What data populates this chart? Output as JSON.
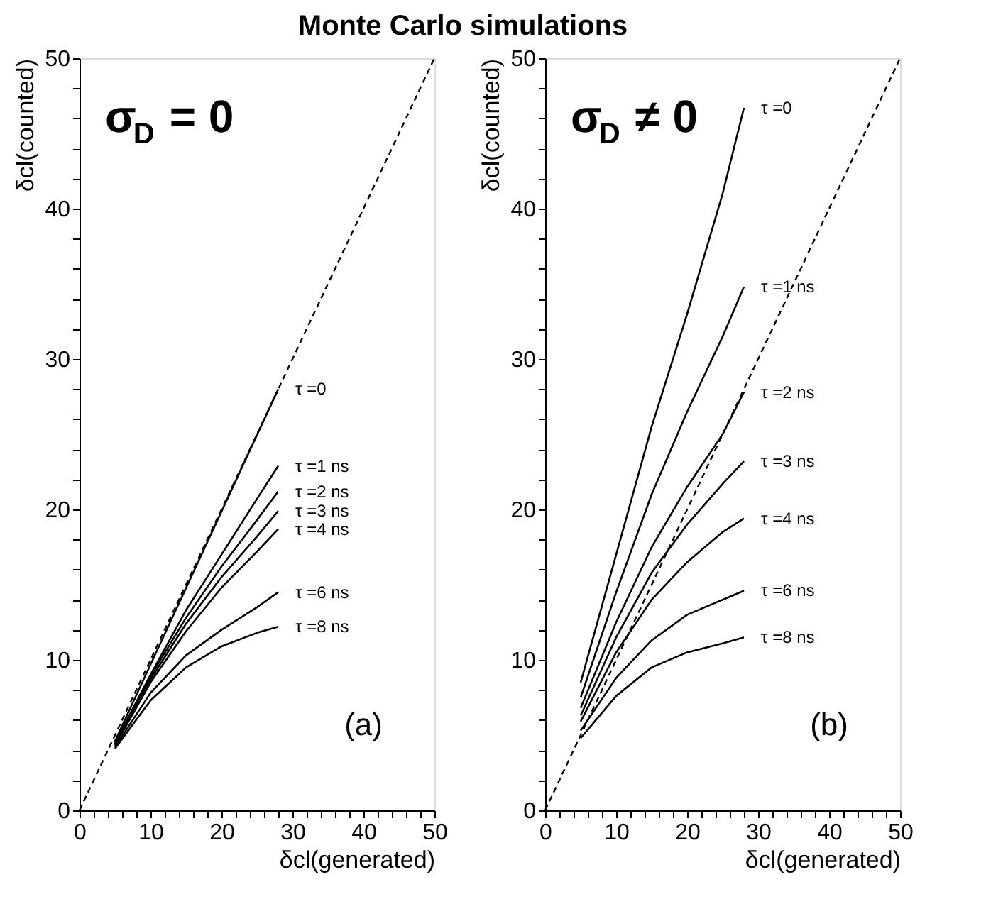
{
  "chart_data": [
    {
      "type": "line",
      "title": "Monte Carlo simulations",
      "xlabel": "δcl(generated)",
      "ylabel": "δcl(counted)",
      "xlim": [
        0,
        50
      ],
      "ylim": [
        0,
        50
      ],
      "xticks": [
        0,
        {
          "value": 2,
          "label": null
        },
        {
          "value": 4,
          "label": null
        },
        {
          "value": 6,
          "label": null
        },
        {
          "value": 8,
          "label": null
        },
        10,
        {
          "value": 12,
          "label": null
        },
        {
          "value": 14,
          "label": null
        },
        {
          "value": 16,
          "label": null
        },
        {
          "value": 18,
          "label": null
        },
        20,
        {
          "value": 22,
          "label": null
        },
        {
          "value": 24,
          "label": null
        },
        {
          "value": 26,
          "label": null
        },
        {
          "value": 28,
          "label": null
        },
        30,
        {
          "value": 32,
          "label": null
        },
        {
          "value": 34,
          "label": null
        },
        {
          "value": 36,
          "label": null
        },
        {
          "value": 38,
          "label": null
        },
        40,
        {
          "value": 42,
          "label": null
        },
        {
          "value": 44,
          "label": null
        },
        {
          "value": 46,
          "label": null
        },
        {
          "value": 48,
          "label": null
        },
        50
      ],
      "yticks": [
        0,
        {
          "value": 2,
          "label": null
        },
        {
          "value": 4,
          "label": null
        },
        {
          "value": 6,
          "label": null
        },
        {
          "value": 8,
          "label": null
        },
        10,
        {
          "value": 12,
          "label": null
        },
        {
          "value": 14,
          "label": null
        },
        {
          "value": 16,
          "label": null
        },
        {
          "value": 18,
          "label": null
        },
        20,
        {
          "value": 22,
          "label": null
        },
        {
          "value": 24,
          "label": null
        },
        {
          "value": 26,
          "label": null
        },
        {
          "value": 28,
          "label": null
        },
        30,
        {
          "value": 32,
          "label": null
        },
        {
          "value": 34,
          "label": null
        },
        {
          "value": 36,
          "label": null
        },
        {
          "value": 38,
          "label": null
        },
        40,
        {
          "value": 42,
          "label": null
        },
        {
          "value": 44,
          "label": null
        },
        {
          "value": 46,
          "label": null
        },
        {
          "value": 48,
          "label": null
        },
        50
      ],
      "grid": false,
      "legend": false,
      "annotations": [
        "σ$_{D}$ = 0",
        "(a)"
      ],
      "series": [
        {
          "color": "#000000",
          "line_style": "dashed",
          "x": [
            0,
            50
          ],
          "values": [
            0,
            50
          ]
        },
        {
          "name": "τ =0",
          "color": "#000000",
          "line_style": "solid",
          "x": [
            5,
            28
          ],
          "values": [
            4.6,
            28
          ]
        },
        {
          "name": "τ =1 ns",
          "color": "#000000",
          "line_style": "solid",
          "x": [
            5,
            10,
            15,
            20,
            25,
            28
          ],
          "values": [
            4.5,
            9,
            13.3,
            17,
            20.7,
            22.9
          ]
        },
        {
          "name": "τ =2 ns",
          "color": "#000000",
          "line_style": "solid",
          "x": [
            5,
            10,
            15,
            20,
            25,
            28
          ],
          "values": [
            4.4,
            8.9,
            12.8,
            16.2,
            19.3,
            21.2
          ]
        },
        {
          "name": "τ =3 ns",
          "color": "#000000",
          "line_style": "solid",
          "x": [
            5,
            10,
            15,
            20,
            25,
            28
          ],
          "values": [
            4.4,
            8.7,
            12.4,
            15.5,
            18.2,
            19.9
          ]
        },
        {
          "name": "τ =4 ns",
          "color": "#000000",
          "line_style": "solid",
          "x": [
            5,
            10,
            15,
            20,
            25,
            28
          ],
          "values": [
            4.3,
            8.5,
            11.9,
            14.8,
            17.2,
            18.7
          ]
        },
        {
          "name": "τ =6 ns",
          "color": "#000000",
          "line_style": "solid",
          "x": [
            5,
            10,
            15,
            20,
            25,
            28
          ],
          "values": [
            4.2,
            7.8,
            10.3,
            12,
            13.5,
            14.5
          ]
        },
        {
          "name": "τ =8 ns",
          "color": "#000000",
          "line_style": "solid",
          "x": [
            5,
            10,
            15,
            20,
            25,
            28
          ],
          "values": [
            4.1,
            7.3,
            9.5,
            10.9,
            11.8,
            12.2
          ]
        }
      ]
    },
    {
      "type": "line",
      "xlabel": "δcl(generated)",
      "ylabel": "δcl(counted)",
      "xlim": [
        0,
        50
      ],
      "ylim": [
        0,
        50
      ],
      "xticks": [
        0,
        {
          "value": 2,
          "label": null
        },
        {
          "value": 4,
          "label": null
        },
        {
          "value": 6,
          "label": null
        },
        {
          "value": 8,
          "label": null
        },
        10,
        {
          "value": 12,
          "label": null
        },
        {
          "value": 14,
          "label": null
        },
        {
          "value": 16,
          "label": null
        },
        {
          "value": 18,
          "label": null
        },
        20,
        {
          "value": 22,
          "label": null
        },
        {
          "value": 24,
          "label": null
        },
        {
          "value": 26,
          "label": null
        },
        {
          "value": 28,
          "label": null
        },
        30,
        {
          "value": 32,
          "label": null
        },
        {
          "value": 34,
          "label": null
        },
        {
          "value": 36,
          "label": null
        },
        {
          "value": 38,
          "label": null
        },
        40,
        {
          "value": 42,
          "label": null
        },
        {
          "value": 44,
          "label": null
        },
        {
          "value": 46,
          "label": null
        },
        {
          "value": 48,
          "label": null
        },
        50
      ],
      "yticks": [
        0,
        {
          "value": 2,
          "label": null
        },
        {
          "value": 4,
          "label": null
        },
        {
          "value": 6,
          "label": null
        },
        {
          "value": 8,
          "label": null
        },
        10,
        {
          "value": 12,
          "label": null
        },
        {
          "value": 14,
          "label": null
        },
        {
          "value": 16,
          "label": null
        },
        {
          "value": 18,
          "label": null
        },
        20,
        {
          "value": 22,
          "label": null
        },
        {
          "value": 24,
          "label": null
        },
        {
          "value": 26,
          "label": null
        },
        {
          "value": 28,
          "label": null
        },
        30,
        {
          "value": 32,
          "label": null
        },
        {
          "value": 34,
          "label": null
        },
        {
          "value": 36,
          "label": null
        },
        {
          "value": 38,
          "label": null
        },
        40,
        {
          "value": 42,
          "label": null
        },
        {
          "value": 44,
          "label": null
        },
        {
          "value": 46,
          "label": null
        },
        {
          "value": 48,
          "label": null
        },
        50
      ],
      "grid": false,
      "legend": false,
      "annotations": [
        "σ$_{D}$ ≠ 0",
        "(b)"
      ],
      "series": [
        {
          "color": "#000000",
          "line_style": "dashed",
          "x": [
            0,
            50
          ],
          "values": [
            0,
            50
          ]
        },
        {
          "name": "τ =0",
          "color": "#000000",
          "line_style": "solid",
          "x": [
            5,
            10,
            15,
            20,
            25,
            28
          ],
          "values": [
            8.5,
            17,
            25.5,
            33,
            41,
            46.7
          ]
        },
        {
          "name": "τ =1 ns",
          "color": "#000000",
          "line_style": "solid",
          "x": [
            5,
            10,
            15,
            20,
            25,
            28
          ],
          "values": [
            7.5,
            14.5,
            21,
            26.5,
            31.5,
            34.8
          ]
        },
        {
          "name": "τ =2 ns",
          "color": "#000000",
          "line_style": "solid",
          "x": [
            5,
            10,
            15,
            20,
            25,
            28
          ],
          "values": [
            6.8,
            12.5,
            17.5,
            21.5,
            25,
            27.8
          ]
        },
        {
          "name": "τ =3 ns",
          "color": "#000000",
          "line_style": "solid",
          "x": [
            5,
            10,
            15,
            20,
            25,
            28
          ],
          "values": [
            6.3,
            11.5,
            15.8,
            19,
            21.7,
            23.2
          ]
        },
        {
          "name": "τ =4 ns",
          "color": "#000000",
          "line_style": "solid",
          "x": [
            5,
            10,
            15,
            20,
            25,
            28
          ],
          "values": [
            5.9,
            10.5,
            14,
            16.5,
            18.5,
            19.4
          ]
        },
        {
          "name": "τ =6 ns",
          "color": "#000000",
          "line_style": "solid",
          "x": [
            5,
            10,
            15,
            20,
            25,
            28
          ],
          "values": [
            5.3,
            8.8,
            11.3,
            13,
            14,
            14.6
          ]
        },
        {
          "name": "τ =8 ns",
          "color": "#000000",
          "line_style": "solid",
          "x": [
            5,
            10,
            15,
            20,
            25,
            28
          ],
          "values": [
            4.8,
            7.6,
            9.5,
            10.5,
            11.1,
            11.5
          ]
        }
      ]
    }
  ]
}
